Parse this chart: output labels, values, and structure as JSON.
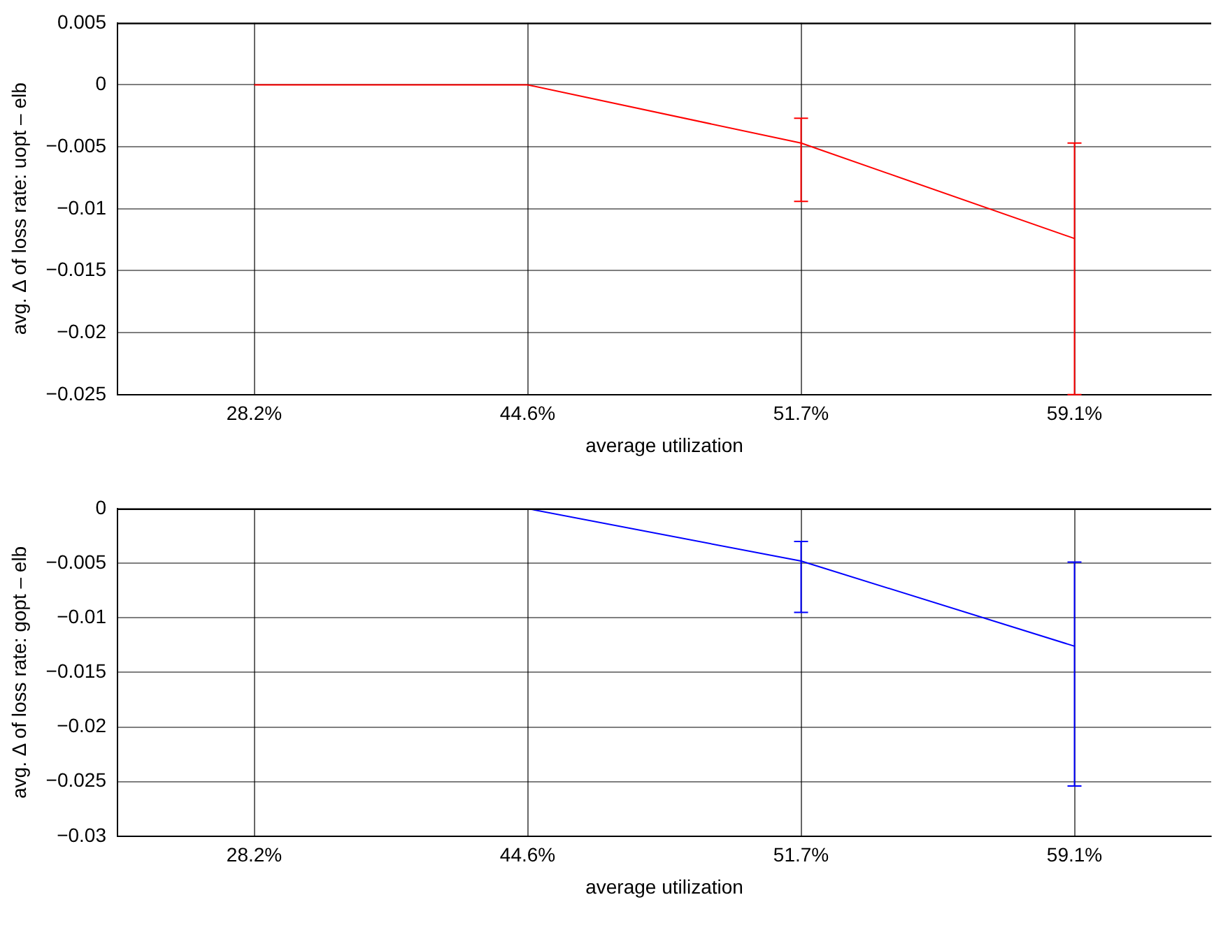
{
  "chart_data": [
    {
      "type": "line",
      "xlabel": "average utilization",
      "ylabel": "avg. Δ of loss rate: uopt – elb",
      "categories": [
        "28.2%",
        "44.6%",
        "51.7%",
        "59.1%"
      ],
      "series": [
        {
          "color": "#ff0000",
          "values": [
            0,
            0,
            -0.0047,
            -0.0124
          ],
          "errors": [
            null,
            null,
            [
              -0.0094,
              -0.0027
            ],
            [
              -0.025,
              -0.0047
            ]
          ]
        }
      ],
      "ylim": [
        -0.025,
        0.005
      ],
      "yticks": [
        -0.025,
        -0.02,
        -0.015,
        -0.01,
        -0.005,
        0,
        0.005
      ],
      "grid": true,
      "legend": false,
      "marker": "none"
    },
    {
      "type": "line",
      "xlabel": "average utilization",
      "ylabel": "avg. Δ of loss rate: gopt – elb",
      "categories": [
        "28.2%",
        "44.6%",
        "51.7%",
        "59.1%"
      ],
      "series": [
        {
          "color": "#0000ff",
          "values": [
            0,
            0,
            -0.0048,
            -0.0126
          ],
          "errors": [
            null,
            null,
            [
              -0.0095,
              -0.003
            ],
            [
              -0.0254,
              -0.0049
            ]
          ]
        }
      ],
      "ylim": [
        -0.03,
        0
      ],
      "yticks": [
        -0.03,
        -0.025,
        -0.02,
        -0.015,
        -0.01,
        -0.005,
        0
      ],
      "grid": true,
      "legend": false,
      "marker": "none"
    }
  ]
}
